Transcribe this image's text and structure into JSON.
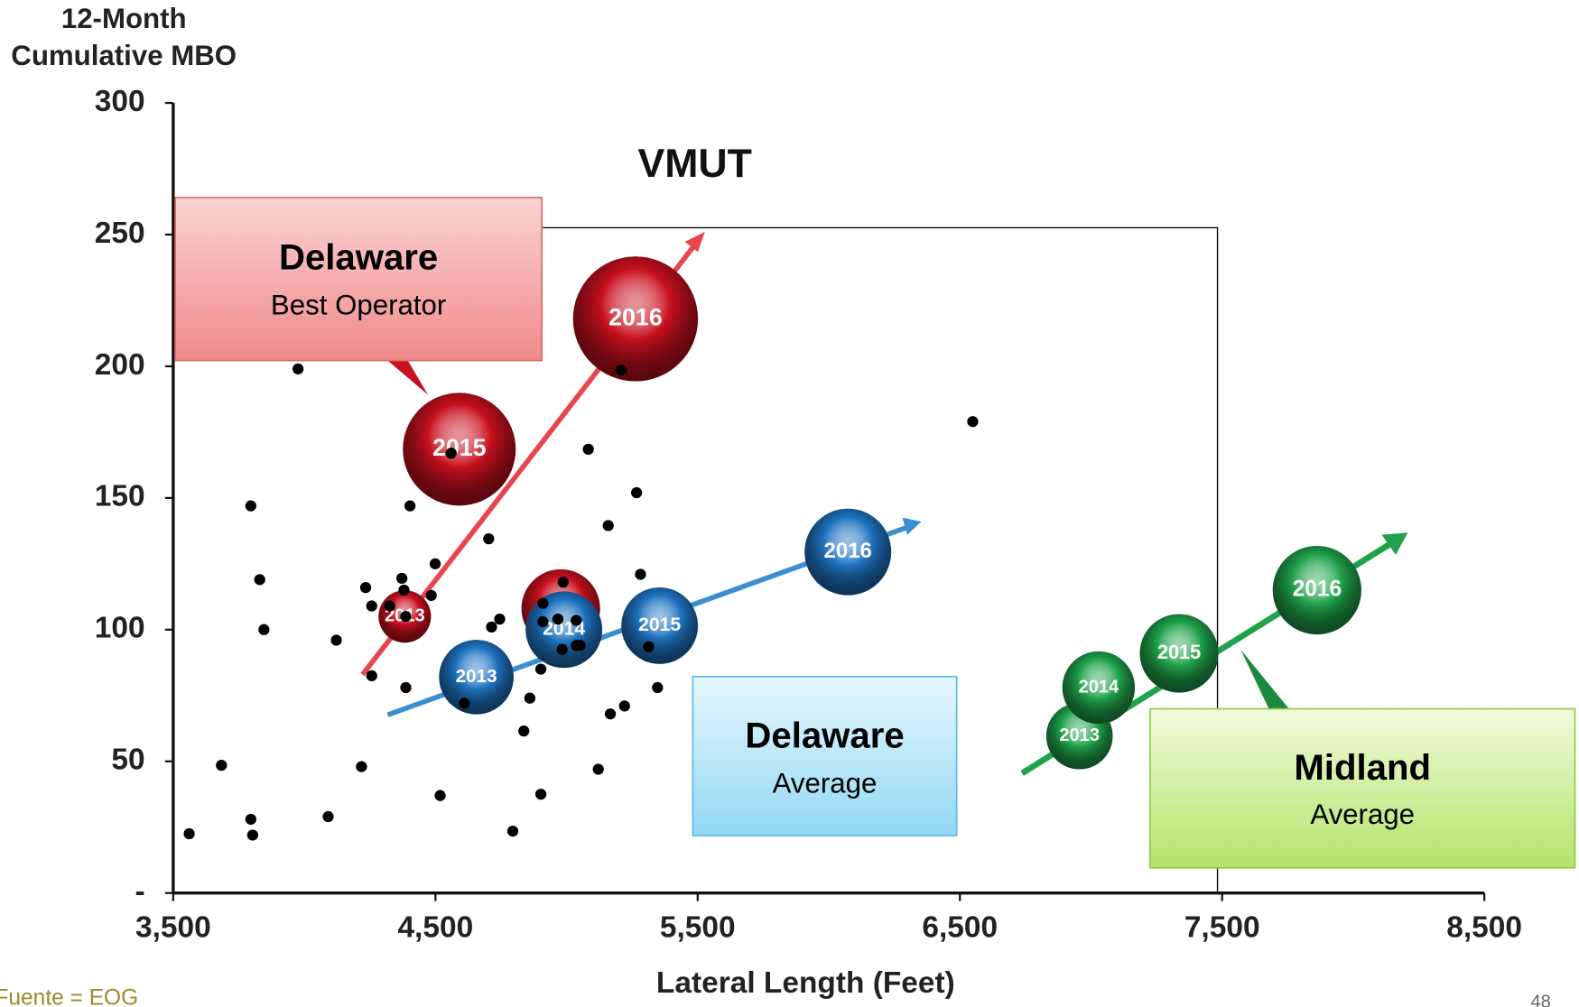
{
  "chart_data": {
    "type": "scatter",
    "title": "VMUT",
    "ylabel": [
      "12-Month",
      "Cumulative MBO"
    ],
    "xlabel": "Lateral Length (Feet)",
    "xlim": [
      3500,
      8500
    ],
    "ylim": [
      0,
      300
    ],
    "xticks": [
      {
        "value": 3500,
        "label": "3,500"
      },
      {
        "value": 4500,
        "label": "4,500"
      },
      {
        "value": 5500,
        "label": "5,500"
      },
      {
        "value": 6500,
        "label": "6,500"
      },
      {
        "value": 7500,
        "label": "7,500"
      },
      {
        "value": 8500,
        "label": "8,500"
      }
    ],
    "yticks": [
      {
        "value": 0,
        "label": "-"
      },
      50,
      100,
      150,
      200,
      250,
      300
    ],
    "color": "#000000",
    "x": [
      3561,
      3684,
      3796,
      3796,
      3803,
      3830,
      3846,
      3976,
      4091,
      4122,
      4218,
      4234,
      4257,
      4257,
      4326,
      4372,
      4380,
      4387,
      4387,
      4403,
      4484,
      4499,
      4518,
      4560,
      4610,
      4703,
      4714,
      4745,
      4795,
      4837,
      4860,
      4902,
      4902,
      4910,
      4910,
      4967,
      4983,
      4987,
      5037,
      5037,
      5052,
      5083,
      5121,
      5159,
      5167,
      5209,
      5221,
      5267,
      5282,
      5313,
      5347,
      6549
    ],
    "values": [
      22.5,
      48.5,
      147,
      28,
      22,
      119,
      100,
      199,
      29,
      96,
      48,
      116,
      109,
      82.5,
      109,
      119.5,
      115,
      105,
      78,
      147,
      113,
      125,
      37,
      167,
      72,
      134.5,
      101,
      104,
      23.5,
      61.5,
      74,
      37.5,
      85,
      110,
      103,
      104,
      92.5,
      118,
      94,
      103.5,
      94,
      168.5,
      47,
      139.5,
      68,
      198.5,
      71,
      152,
      121,
      93.5,
      78,
      179
    ],
    "bubble_series": [
      {
        "color": "#c8101e",
        "labels": [
          "2013",
          "2014",
          "2015",
          "2016"
        ],
        "x": [
          4383,
          4978,
          4591,
          5263
        ],
        "values": [
          105,
          108,
          168.5,
          218
        ],
        "sizes": [
          26,
          39,
          56,
          62
        ]
      },
      {
        "color": "#1f73c0",
        "labels": [
          "2013",
          "2014",
          "2015",
          "2016"
        ],
        "x": [
          4656,
          4990,
          5355,
          6073
        ],
        "values": [
          82,
          100,
          101.5,
          129.5
        ],
        "sizes": [
          37,
          38,
          38,
          43
        ]
      },
      {
        "color": "#1fa24a",
        "labels": [
          "2013",
          "2014",
          "2015",
          "2016"
        ],
        "x": [
          6956,
          7029,
          7336,
          7862
        ],
        "values": [
          59.6,
          78,
          91,
          115
        ],
        "sizes": [
          33,
          36,
          39,
          44
        ]
      }
    ],
    "annotations": [
      {
        "title": "Delaware",
        "subtitle": "Best Operator"
      },
      {
        "title": "Delaware",
        "subtitle": "Average"
      },
      {
        "title": "Midland",
        "subtitle": "Average"
      }
    ],
    "source": "Fuente = EOG",
    "page_number": "48"
  }
}
